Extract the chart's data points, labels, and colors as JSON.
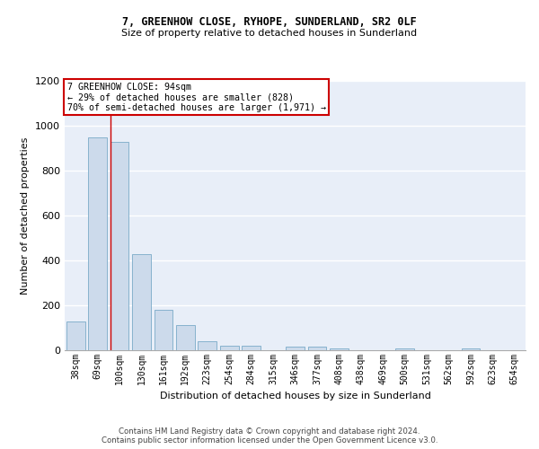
{
  "title_line1": "7, GREENHOW CLOSE, RYHOPE, SUNDERLAND, SR2 0LF",
  "title_line2": "Size of property relative to detached houses in Sunderland",
  "xlabel": "Distribution of detached houses by size in Sunderland",
  "ylabel": "Number of detached properties",
  "footnote_line1": "Contains HM Land Registry data © Crown copyright and database right 2024.",
  "footnote_line2": "Contains public sector information licensed under the Open Government Licence v3.0.",
  "categories": [
    "38sqm",
    "69sqm",
    "100sqm",
    "130sqm",
    "161sqm",
    "192sqm",
    "223sqm",
    "254sqm",
    "284sqm",
    "315sqm",
    "346sqm",
    "377sqm",
    "408sqm",
    "438sqm",
    "469sqm",
    "500sqm",
    "531sqm",
    "562sqm",
    "592sqm",
    "623sqm",
    "654sqm"
  ],
  "bar_heights": [
    127,
    950,
    930,
    428,
    182,
    112,
    42,
    20,
    20,
    0,
    18,
    18,
    10,
    0,
    0,
    10,
    0,
    0,
    10,
    0,
    0
  ],
  "bar_color": "#ccdaeb",
  "bar_edge_color": "#7aaac8",
  "annotation_text": "7 GREENHOW CLOSE: 94sqm\n← 29% of detached houses are smaller (828)\n70% of semi-detached houses are larger (1,971) →",
  "vline_pos": 1.57,
  "ylim": [
    0,
    1200
  ],
  "yticks": [
    0,
    200,
    400,
    600,
    800,
    1000,
    1200
  ],
  "background_color": "#e8eef8",
  "grid_color": "#ffffff",
  "box_edge_color": "#cc0000",
  "vline_color": "#cc0000",
  "fig_bg": "#ffffff"
}
